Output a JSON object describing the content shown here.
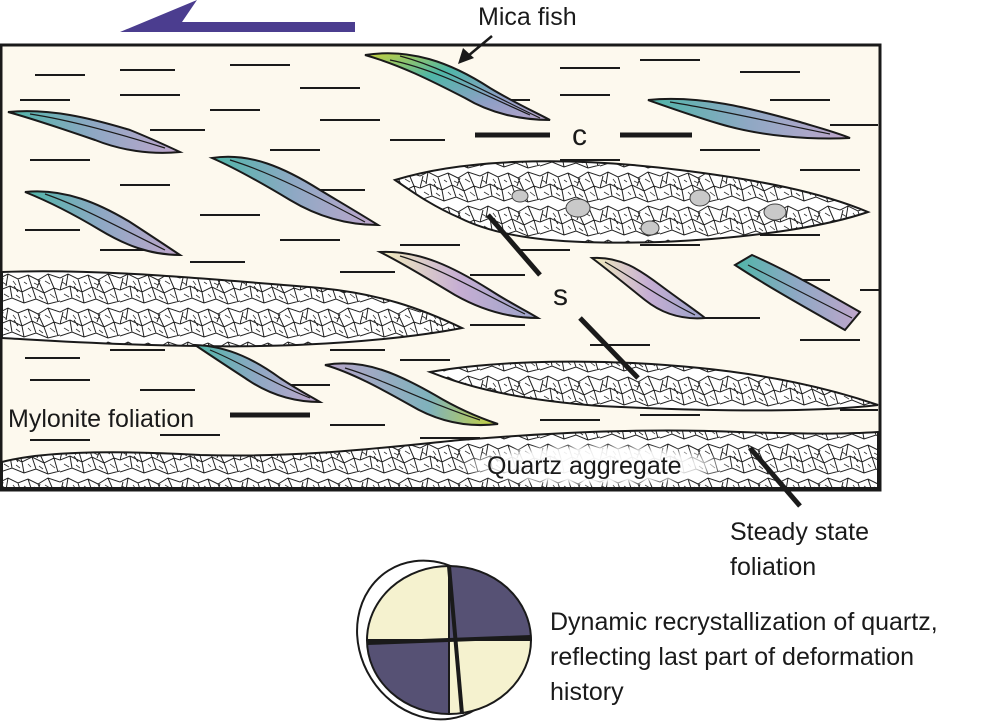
{
  "labels": {
    "mica_fish": "Mica fish",
    "c_plane": "c",
    "s_plane": "s",
    "mylonite_foliation": "Mylonite foliation",
    "quartz_aggregate": "Quartz aggregate",
    "steady_state_line1": "Steady state",
    "steady_state_line2": "foliation",
    "caption_line1": "Dynamic recrystallization of quartz,",
    "caption_line2": "reflecting last part of deformation",
    "caption_line3": "history"
  },
  "colors": {
    "background": "#fdf9ee",
    "outline": "#1a1a1a",
    "shear_arrow": "#4b3d8f",
    "mica_teal": "#4fb6a8",
    "mica_lilac": "#b8a3c9",
    "mica_yellow": "#c8d23a",
    "quadrant_dark": "#565174",
    "quadrant_light": "#f5f2cf"
  },
  "icons": {
    "shear_sense": "left-pointing-half-arrow"
  }
}
